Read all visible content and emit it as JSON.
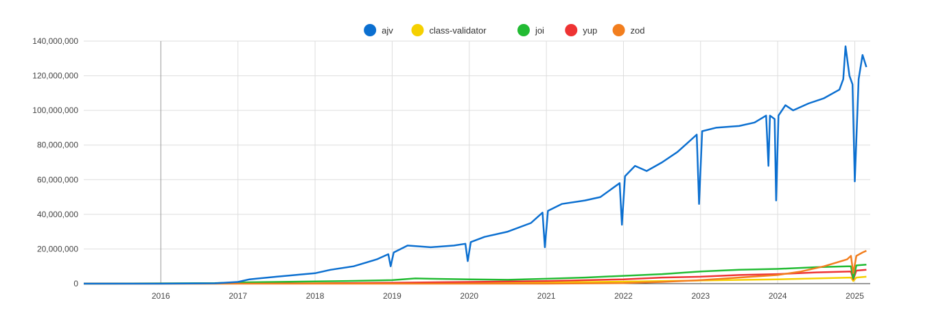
{
  "chart_data": {
    "type": "line",
    "title": "",
    "xlabel": "",
    "ylabel": "",
    "legend_position": "top-center",
    "grid": true,
    "x_range": [
      2015.0,
      2025.2
    ],
    "ylim": [
      0,
      140000000
    ],
    "y_ticks": [
      0,
      20000000,
      40000000,
      60000000,
      80000000,
      100000000,
      120000000,
      140000000
    ],
    "y_tick_labels": [
      "0",
      "20,000,000",
      "40,000,000",
      "60,000,000",
      "80,000,000",
      "100,000,000",
      "120,000,000",
      "140,000,000"
    ],
    "x_ticks": [
      2016,
      2017,
      2018,
      2019,
      2020,
      2021,
      2022,
      2023,
      2024,
      2025
    ],
    "x_tick_labels": [
      "2016",
      "2017",
      "2018",
      "2019",
      "2020",
      "2021",
      "2022",
      "2023",
      "2024",
      "2025"
    ],
    "series": [
      {
        "name": "ajv",
        "color": "#0b6fd0",
        "x": [
          2015.0,
          2016.0,
          2016.7,
          2017.0,
          2017.15,
          2017.5,
          2018.0,
          2018.2,
          2018.5,
          2018.8,
          2018.95,
          2018.98,
          2019.02,
          2019.2,
          2019.5,
          2019.8,
          2019.95,
          2019.98,
          2020.02,
          2020.2,
          2020.5,
          2020.8,
          2020.95,
          2020.98,
          2021.02,
          2021.2,
          2021.5,
          2021.7,
          2021.95,
          2021.98,
          2022.02,
          2022.15,
          2022.3,
          2022.5,
          2022.7,
          2022.8,
          2022.95,
          2022.98,
          2023.02,
          2023.2,
          2023.5,
          2023.7,
          2023.85,
          2023.88,
          2023.9,
          2023.96,
          2023.98,
          2024.01,
          2024.1,
          2024.2,
          2024.4,
          2024.6,
          2024.8,
          2024.85,
          2024.88,
          2024.93,
          2024.97,
          2025.0,
          2025.05,
          2025.1,
          2025.15
        ],
        "values": [
          0,
          0,
          200000,
          1000000,
          2500000,
          4000000,
          6000000,
          8000000,
          10000000,
          14000000,
          17000000,
          10000000,
          18000000,
          22000000,
          21000000,
          22000000,
          23000000,
          13000000,
          24000000,
          27000000,
          30000000,
          35000000,
          41000000,
          21000000,
          42000000,
          46000000,
          48000000,
          50000000,
          58000000,
          34000000,
          62000000,
          68000000,
          65000000,
          70000000,
          76000000,
          80000000,
          86000000,
          46000000,
          88000000,
          90000000,
          91000000,
          93000000,
          97000000,
          68000000,
          97000000,
          95000000,
          48000000,
          97000000,
          103000000,
          100000000,
          104000000,
          107000000,
          112000000,
          118000000,
          137000000,
          120000000,
          115000000,
          59000000,
          118000000,
          132000000,
          125000000
        ]
      },
      {
        "name": "class-validator",
        "color": "#f5d000",
        "x": [
          2015.0,
          2016.7,
          2018.0,
          2019.0,
          2020.0,
          2021.0,
          2022.0,
          2023.0,
          2024.0,
          2024.5,
          2024.95,
          2024.98,
          2025.02,
          2025.15
        ],
        "values": [
          0,
          50000,
          200000,
          400000,
          500000,
          700000,
          1200000,
          1800000,
          2500000,
          3000000,
          3500000,
          1500000,
          3500000,
          4000000
        ]
      },
      {
        "name": "joi",
        "color": "#22bb33",
        "x": [
          2015.0,
          2016.7,
          2017.0,
          2017.5,
          2018.0,
          2018.5,
          2019.0,
          2019.3,
          2019.5,
          2020.0,
          2020.5,
          2021.0,
          2021.5,
          2022.0,
          2022.5,
          2023.0,
          2023.5,
          2024.0,
          2024.5,
          2024.9,
          2024.95,
          2024.98,
          2025.02,
          2025.15
        ],
        "values": [
          0,
          300000,
          700000,
          1000000,
          1300000,
          1600000,
          2000000,
          3000000,
          2800000,
          2500000,
          2200000,
          2800000,
          3500000,
          4500000,
          5500000,
          7000000,
          8000000,
          8500000,
          9500000,
          10000000,
          10000000,
          3000000,
          10500000,
          11000000
        ]
      },
      {
        "name": "yup",
        "color": "#ee3333",
        "x": [
          2015.0,
          2018.0,
          2019.0,
          2020.0,
          2021.0,
          2022.0,
          2022.5,
          2023.0,
          2023.5,
          2024.0,
          2024.5,
          2024.95,
          2024.98,
          2025.02,
          2025.15
        ],
        "values": [
          0,
          100000,
          500000,
          1000000,
          1500000,
          2500000,
          3500000,
          4000000,
          5000000,
          5500000,
          6500000,
          7000000,
          2500000,
          7500000,
          8000000
        ]
      },
      {
        "name": "zod",
        "color": "#f27e1e",
        "x": [
          2015.0,
          2021.0,
          2022.0,
          2022.5,
          2023.0,
          2023.5,
          2024.0,
          2024.3,
          2024.6,
          2024.9,
          2024.95,
          2024.98,
          2025.02,
          2025.1,
          2025.15
        ],
        "values": [
          0,
          0,
          300000,
          1000000,
          2000000,
          3500000,
          5000000,
          7000000,
          10000000,
          14000000,
          16000000,
          6000000,
          16000000,
          18000000,
          19000000
        ]
      }
    ]
  }
}
